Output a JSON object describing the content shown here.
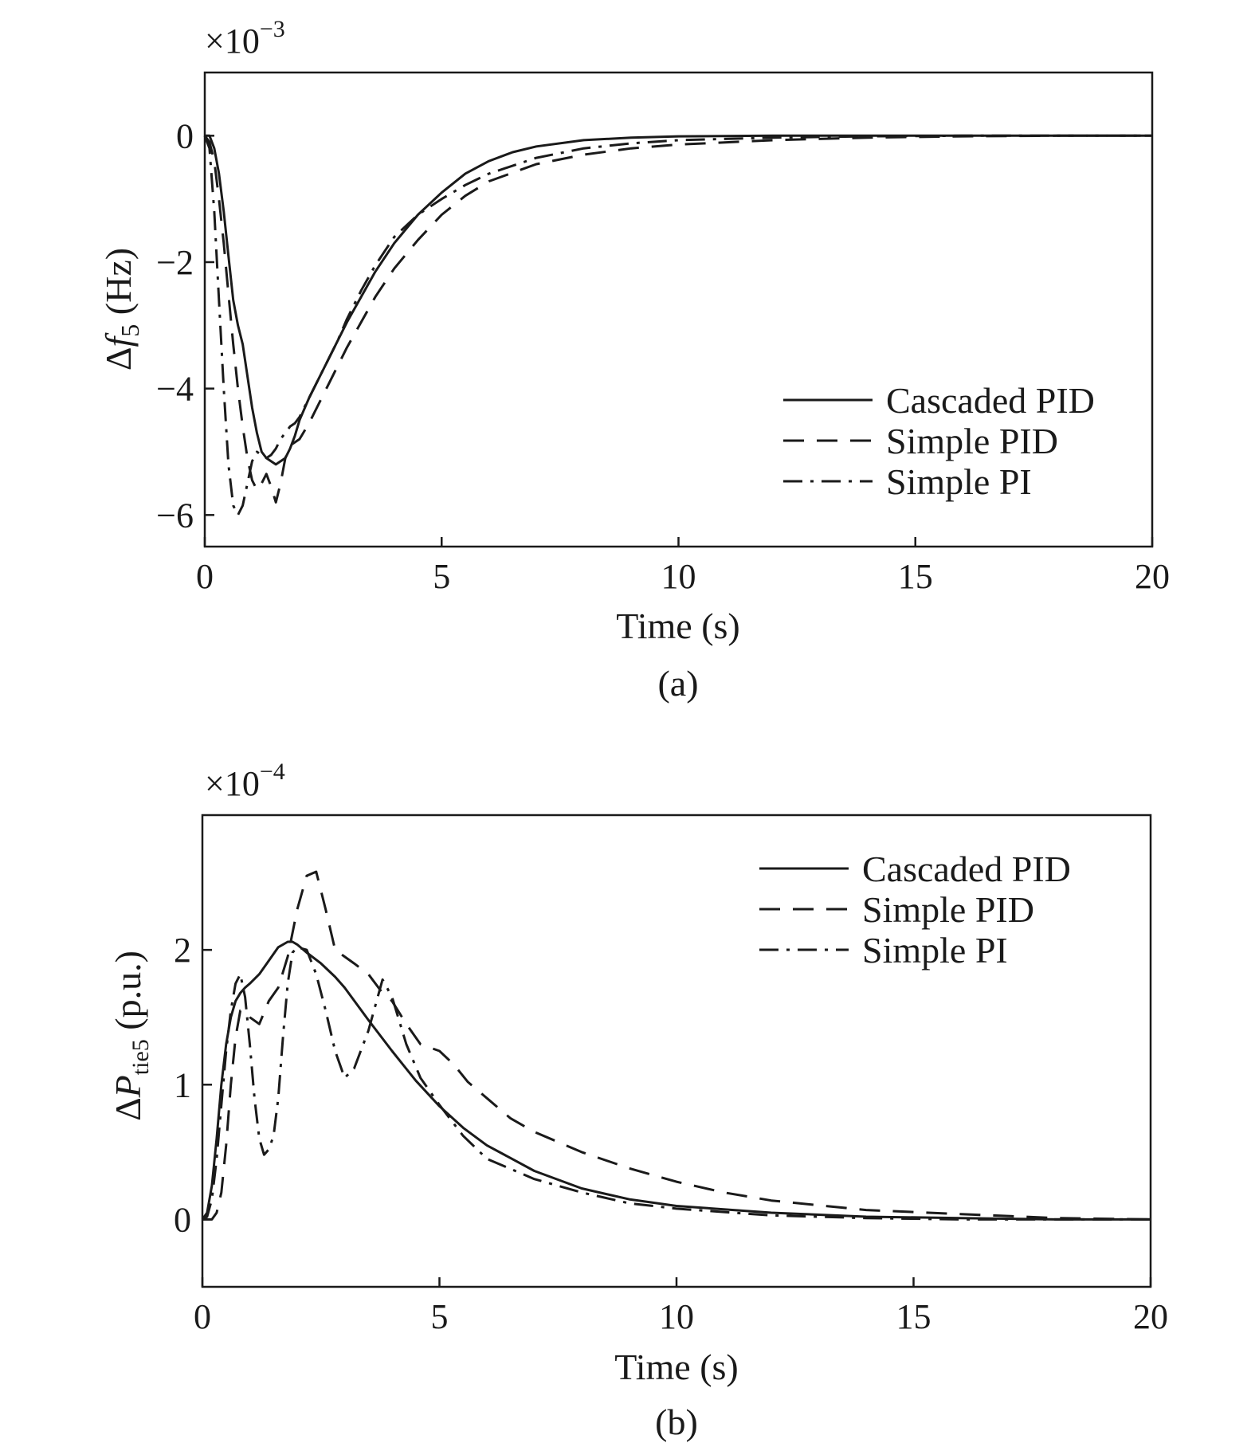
{
  "chart_data": [
    {
      "type": "line",
      "caption": "(a)",
      "xlabel": "Time (s)",
      "ylabel": "Δf5 (Hz)",
      "ylabel_main": "Δ",
      "ylabel_var": "f",
      "ylabel_sub": "5",
      "ylabel_unit": " (Hz)",
      "y_multiplier": "×10",
      "y_multiplier_exp": "−3",
      "xlim": [
        0,
        20
      ],
      "ylim": [
        -6.5,
        1.0
      ],
      "xticks": [
        0,
        5,
        10,
        15,
        20
      ],
      "xtick_labels": [
        "0",
        "5",
        "10",
        "15",
        "20"
      ],
      "yticks": [
        0,
        -2,
        -4,
        -6
      ],
      "ytick_labels": [
        "0",
        "−2",
        "−4",
        "−6"
      ],
      "grid": false,
      "legend_position": "lower-right",
      "series": [
        {
          "name": "Cascaded PID",
          "style": "solid",
          "x": [
            0,
            0.1,
            0.2,
            0.3,
            0.4,
            0.5,
            0.6,
            0.7,
            0.8,
            0.9,
            1.0,
            1.1,
            1.2,
            1.3,
            1.4,
            1.5,
            1.6,
            1.7,
            1.8,
            1.9,
            2.0,
            2.2,
            2.4,
            2.6,
            2.8,
            3.0,
            3.3,
            3.6,
            4.0,
            4.5,
            5.0,
            5.5,
            6.0,
            6.5,
            7.0,
            8.0,
            9.0,
            10.0,
            12.0,
            14.0,
            16.0,
            18.0,
            20.0
          ],
          "values": [
            0,
            0,
            -0.2,
            -0.6,
            -1.2,
            -1.9,
            -2.6,
            -3.0,
            -3.3,
            -3.8,
            -4.3,
            -4.7,
            -5.0,
            -5.1,
            -5.15,
            -5.2,
            -5.15,
            -5.1,
            -4.95,
            -4.75,
            -4.5,
            -4.15,
            -3.85,
            -3.55,
            -3.25,
            -2.95,
            -2.55,
            -2.15,
            -1.7,
            -1.25,
            -0.9,
            -0.6,
            -0.4,
            -0.26,
            -0.17,
            -0.07,
            -0.03,
            -0.01,
            0,
            0,
            0,
            0,
            0
          ]
        },
        {
          "name": "Simple PID",
          "style": "dashed",
          "x": [
            0,
            0.1,
            0.2,
            0.3,
            0.4,
            0.5,
            0.6,
            0.7,
            0.8,
            0.9,
            1.0,
            1.1,
            1.2,
            1.3,
            1.4,
            1.5,
            1.6,
            1.7,
            1.8,
            1.9,
            2.0,
            2.2,
            2.4,
            2.6,
            2.8,
            3.0,
            3.3,
            3.6,
            4.0,
            4.5,
            5.0,
            5.5,
            6.0,
            7.0,
            8.0,
            9.0,
            10.0,
            12.0,
            14.0,
            16.0,
            18.0,
            20.0
          ],
          "values": [
            0,
            -0.1,
            -0.4,
            -1.0,
            -1.7,
            -2.5,
            -3.3,
            -4.0,
            -4.6,
            -5.1,
            -5.45,
            -5.6,
            -5.5,
            -5.35,
            -5.55,
            -5.8,
            -5.5,
            -5.1,
            -4.9,
            -4.85,
            -4.8,
            -4.55,
            -4.25,
            -3.95,
            -3.65,
            -3.35,
            -2.95,
            -2.55,
            -2.1,
            -1.65,
            -1.25,
            -0.95,
            -0.72,
            -0.45,
            -0.3,
            -0.2,
            -0.14,
            -0.07,
            -0.03,
            -0.01,
            0,
            0
          ]
        },
        {
          "name": "Simple PI",
          "style": "dashdot",
          "x": [
            0,
            0.1,
            0.2,
            0.3,
            0.4,
            0.5,
            0.6,
            0.7,
            0.8,
            0.9,
            1.0,
            1.1,
            1.2,
            1.3,
            1.4,
            1.5,
            1.6,
            1.7,
            1.8,
            1.9,
            2.0,
            2.2,
            2.4,
            2.6,
            2.8,
            3.0,
            3.3,
            3.6,
            4.0,
            4.5,
            5.0,
            5.5,
            6.0,
            7.0,
            8.0,
            9.0,
            10.0,
            12.0,
            14.0,
            16.0,
            18.0,
            20.0
          ],
          "values": [
            0,
            -0.2,
            -1.2,
            -2.6,
            -4.0,
            -5.2,
            -5.85,
            -6.0,
            -5.85,
            -5.5,
            -5.15,
            -5.0,
            -5.05,
            -5.1,
            -5.05,
            -4.95,
            -4.8,
            -4.7,
            -4.6,
            -4.55,
            -4.45,
            -4.15,
            -3.85,
            -3.55,
            -3.25,
            -2.9,
            -2.45,
            -2.05,
            -1.6,
            -1.25,
            -1.0,
            -0.78,
            -0.6,
            -0.35,
            -0.2,
            -0.12,
            -0.07,
            -0.03,
            -0.01,
            0,
            0,
            0
          ]
        }
      ]
    },
    {
      "type": "line",
      "caption": "(b)",
      "xlabel": "Time (s)",
      "ylabel": "ΔPtie5 (p.u.)",
      "ylabel_main": "Δ",
      "ylabel_var": "P",
      "ylabel_sub": "tie5",
      "ylabel_unit": " (p.u.)",
      "y_multiplier": "×10",
      "y_multiplier_exp": "−4",
      "xlim": [
        0,
        20
      ],
      "ylim": [
        -0.5,
        3.0
      ],
      "xticks": [
        0,
        5,
        10,
        15,
        20
      ],
      "xtick_labels": [
        "0",
        "5",
        "10",
        "15",
        "20"
      ],
      "yticks": [
        0,
        1,
        2
      ],
      "ytick_labels": [
        "0",
        "1",
        "2"
      ],
      "grid": false,
      "legend_position": "upper-right",
      "series": [
        {
          "name": "Cascaded PID",
          "style": "solid",
          "x": [
            0,
            0.1,
            0.2,
            0.3,
            0.4,
            0.5,
            0.6,
            0.7,
            0.8,
            0.9,
            1.0,
            1.2,
            1.4,
            1.6,
            1.8,
            1.9,
            2.0,
            2.2,
            2.5,
            2.8,
            3.0,
            3.5,
            4.0,
            4.5,
            5.0,
            5.5,
            6.0,
            7.0,
            8.0,
            9.0,
            10.0,
            12.0,
            14.0,
            16.0,
            18.0,
            20.0
          ],
          "values": [
            0,
            0.05,
            0.25,
            0.6,
            1.0,
            1.3,
            1.5,
            1.62,
            1.68,
            1.72,
            1.75,
            1.82,
            1.92,
            2.02,
            2.06,
            2.06,
            2.04,
            1.98,
            1.9,
            1.8,
            1.72,
            1.48,
            1.25,
            1.03,
            0.84,
            0.68,
            0.55,
            0.36,
            0.23,
            0.15,
            0.1,
            0.05,
            0.02,
            0.01,
            0,
            0
          ]
        },
        {
          "name": "Simple PID",
          "style": "dashed",
          "x": [
            0,
            0.1,
            0.2,
            0.3,
            0.4,
            0.5,
            0.6,
            0.7,
            0.8,
            0.9,
            1.0,
            1.2,
            1.4,
            1.6,
            1.8,
            2.0,
            2.2,
            2.4,
            2.6,
            2.8,
            3.0,
            3.2,
            3.5,
            3.8,
            4.0,
            4.3,
            4.6,
            5.0,
            5.3,
            5.6,
            6.0,
            6.5,
            7.0,
            8.0,
            9.0,
            10.0,
            11.0,
            12.0,
            14.0,
            16.0,
            18.0,
            20.0
          ],
          "values": [
            0,
            0,
            0,
            0.05,
            0.2,
            0.55,
            1.0,
            1.35,
            1.55,
            1.55,
            1.5,
            1.45,
            1.62,
            1.72,
            1.95,
            2.3,
            2.55,
            2.58,
            2.3,
            2.0,
            1.95,
            1.9,
            1.82,
            1.68,
            1.62,
            1.45,
            1.3,
            1.25,
            1.15,
            1.02,
            0.9,
            0.75,
            0.65,
            0.5,
            0.38,
            0.28,
            0.2,
            0.14,
            0.07,
            0.04,
            0.01,
            0
          ]
        },
        {
          "name": "Simple PI",
          "style": "dashdot",
          "x": [
            0,
            0.1,
            0.2,
            0.3,
            0.4,
            0.5,
            0.6,
            0.7,
            0.8,
            0.9,
            1.0,
            1.1,
            1.2,
            1.3,
            1.4,
            1.5,
            1.6,
            1.7,
            1.8,
            1.9,
            2.0,
            2.2,
            2.4,
            2.6,
            2.8,
            3.0,
            3.2,
            3.5,
            3.8,
            4.0,
            4.3,
            4.6,
            5.0,
            5.5,
            6.0,
            7.0,
            8.0,
            9.0,
            10.0,
            12.0,
            14.0,
            16.0,
            18.0,
            20.0
          ],
          "values": [
            0,
            0.02,
            0.15,
            0.45,
            0.85,
            1.25,
            1.55,
            1.75,
            1.82,
            1.65,
            1.3,
            0.9,
            0.6,
            0.48,
            0.52,
            0.62,
            0.9,
            1.35,
            1.75,
            1.98,
            2.02,
            2.0,
            1.82,
            1.55,
            1.25,
            1.05,
            1.12,
            1.4,
            1.78,
            1.65,
            1.3,
            1.05,
            0.85,
            0.62,
            0.45,
            0.3,
            0.2,
            0.12,
            0.08,
            0.03,
            0.01,
            0,
            0,
            0
          ]
        }
      ]
    }
  ]
}
